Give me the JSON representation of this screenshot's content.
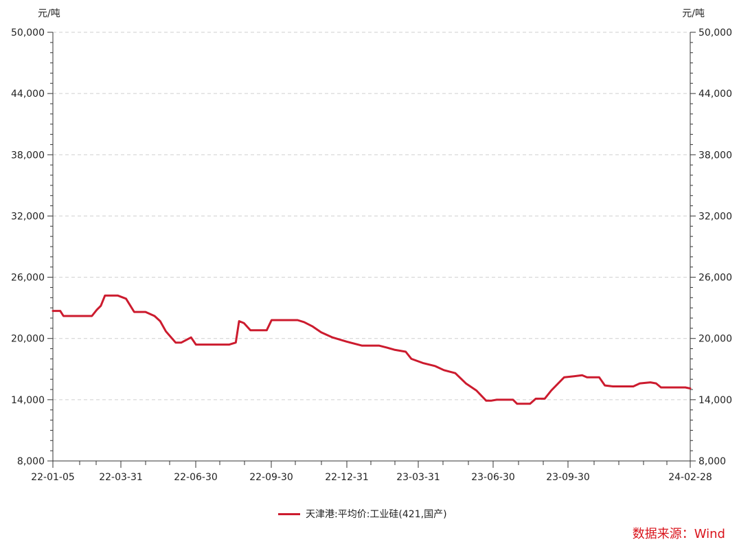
{
  "chart_data": {
    "type": "line",
    "y_unit_left": "元/吨",
    "y_unit_right": "元/吨",
    "ylim": [
      8000,
      50000
    ],
    "y_ticks": [
      "50,000",
      "44,000",
      "38,000",
      "32,000",
      "26,000",
      "20,000",
      "14,000",
      "8,000"
    ],
    "y_tick_values": [
      50000,
      44000,
      38000,
      32000,
      26000,
      20000,
      14000,
      8000
    ],
    "x_ticks": [
      "22-01-05",
      "22-03-31",
      "22-06-30",
      "22-09-30",
      "22-12-31",
      "23-03-31",
      "23-06-30",
      "23-09-30",
      "24-02-28"
    ],
    "grid": true,
    "line_color": "#cc1b2e",
    "series": [
      {
        "name": "天津港:平均价:工业硅(421,国产)",
        "points": [
          [
            "2022-01-05",
            22700
          ],
          [
            "2022-01-14",
            22700
          ],
          [
            "2022-01-18",
            22200
          ],
          [
            "2022-02-22",
            22200
          ],
          [
            "2022-02-28",
            22800
          ],
          [
            "2022-03-05",
            23200
          ],
          [
            "2022-03-10",
            24200
          ],
          [
            "2022-03-26",
            24200
          ],
          [
            "2022-04-05",
            23900
          ],
          [
            "2022-04-15",
            22600
          ],
          [
            "2022-04-29",
            22600
          ],
          [
            "2022-05-10",
            22200
          ],
          [
            "2022-05-17",
            21700
          ],
          [
            "2022-05-24",
            20700
          ],
          [
            "2022-06-05",
            19600
          ],
          [
            "2022-06-12",
            19600
          ],
          [
            "2022-06-24",
            20100
          ],
          [
            "2022-06-30",
            19400
          ],
          [
            "2022-08-10",
            19400
          ],
          [
            "2022-08-18",
            19600
          ],
          [
            "2022-08-22",
            21700
          ],
          [
            "2022-08-28",
            21500
          ],
          [
            "2022-09-05",
            20800
          ],
          [
            "2022-09-25",
            20800
          ],
          [
            "2022-10-01",
            21800
          ],
          [
            "2022-11-02",
            21800
          ],
          [
            "2022-11-10",
            21600
          ],
          [
            "2022-11-20",
            21200
          ],
          [
            "2022-12-01",
            20600
          ],
          [
            "2022-12-15",
            20100
          ],
          [
            "2023-01-01",
            19700
          ],
          [
            "2023-01-20",
            19300
          ],
          [
            "2023-02-10",
            19300
          ],
          [
            "2023-02-20",
            19100
          ],
          [
            "2023-03-01",
            18900
          ],
          [
            "2023-03-15",
            18700
          ],
          [
            "2023-03-22",
            18000
          ],
          [
            "2023-04-05",
            17600
          ],
          [
            "2023-04-20",
            17300
          ],
          [
            "2023-05-01",
            16900
          ],
          [
            "2023-05-15",
            16600
          ],
          [
            "2023-05-28",
            15600
          ],
          [
            "2023-06-10",
            14900
          ],
          [
            "2023-06-22",
            13900
          ],
          [
            "2023-06-28",
            13900
          ],
          [
            "2023-07-05",
            14000
          ],
          [
            "2023-07-25",
            14000
          ],
          [
            "2023-07-30",
            13600
          ],
          [
            "2023-08-15",
            13600
          ],
          [
            "2023-08-22",
            14100
          ],
          [
            "2023-09-02",
            14100
          ],
          [
            "2023-09-10",
            14900
          ],
          [
            "2023-09-26",
            16200
          ],
          [
            "2023-10-08",
            16300
          ],
          [
            "2023-10-18",
            16400
          ],
          [
            "2023-10-24",
            16200
          ],
          [
            "2023-11-08",
            16200
          ],
          [
            "2023-11-15",
            15400
          ],
          [
            "2023-11-25",
            15300
          ],
          [
            "2023-12-20",
            15300
          ],
          [
            "2023-12-28",
            15600
          ],
          [
            "2024-01-10",
            15700
          ],
          [
            "2024-01-17",
            15600
          ],
          [
            "2024-01-23",
            15200
          ],
          [
            "2024-02-22",
            15200
          ],
          [
            "2024-02-28",
            15100
          ]
        ]
      }
    ]
  },
  "legend": {
    "label": "天津港:平均价:工业硅(421,国产)"
  },
  "source": "数据来源：Wind"
}
